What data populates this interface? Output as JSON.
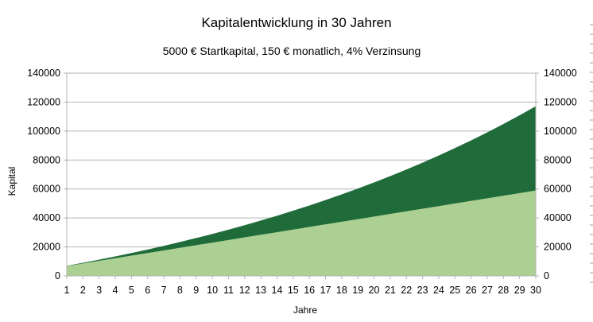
{
  "chart_data": {
    "type": "area",
    "title": "Kapitalentwicklung in 30 Jahren",
    "subtitle": "5000 € Startkapital, 150 € monatlich, 4% Verzinsung",
    "xlabel": "Jahre",
    "ylabel": "Kapital",
    "x": [
      1,
      2,
      3,
      4,
      5,
      6,
      7,
      8,
      9,
      10,
      11,
      12,
      13,
      14,
      15,
      16,
      17,
      18,
      19,
      20,
      21,
      22,
      23,
      24,
      25,
      26,
      27,
      28,
      29,
      30
    ],
    "ylim": [
      0,
      140000
    ],
    "yticks": [
      0,
      20000,
      40000,
      60000,
      80000,
      100000,
      120000,
      140000
    ],
    "ytick_labels": [
      "0",
      "20000",
      "40000",
      "60000",
      "80000",
      "100000",
      "120000",
      "140000"
    ],
    "secondary_y_axis": true,
    "grid": true,
    "stacked": false,
    "series": [
      {
        "color": "#1f6b3a",
        "values": [
          6956,
          9035,
          11198,
          13447,
          15786,
          18218,
          20749,
          23380,
          26117,
          28964,
          31924,
          35003,
          38205,
          41535,
          44998,
          48600,
          52346,
          56241,
          60293,
          64506,
          68888,
          73445,
          78185,
          83114,
          88240,
          93571,
          99115,
          104881,
          110878,
          117113
        ]
      },
      {
        "color": "#acd093",
        "values": [
          6800,
          8600,
          10400,
          12200,
          14000,
          15800,
          17600,
          19400,
          21200,
          23000,
          24800,
          26600,
          28400,
          30200,
          32000,
          33800,
          35600,
          37400,
          39200,
          41000,
          42800,
          44600,
          46400,
          48200,
          50000,
          51800,
          53600,
          55400,
          57200,
          59000
        ]
      }
    ]
  }
}
